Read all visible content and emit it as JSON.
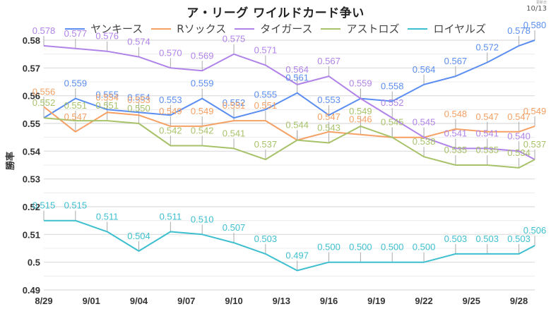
{
  "header": {
    "title": "ア・リーグ ワイルドカード争い",
    "updated_label": "更新日",
    "updated_value": "10/13"
  },
  "chart_data": {
    "type": "line",
    "title": "ア・リーグ ワイルドカード争い",
    "xlabel": "",
    "ylabel": "勝率",
    "ylim": [
      0.49,
      0.58
    ],
    "yticks": [
      0.58,
      0.57,
      0.56,
      0.55,
      0.54,
      0.53,
      0.52,
      0.51,
      0.5,
      0.49
    ],
    "ytick_labels": [
      "0.58",
      "0.57",
      "0.56",
      "0.55",
      "0.54",
      "0.53",
      "0.52",
      "0.51",
      "0.5",
      "0.49"
    ],
    "xtick_labels": [
      "8/29",
      "9/01",
      "9/04",
      "9/07",
      "9/10",
      "9/13",
      "9/16",
      "9/19",
      "9/22",
      "9/25",
      "9/28"
    ],
    "xtick_days": [
      0,
      3,
      6,
      9,
      12,
      15,
      18,
      21,
      24,
      27,
      30
    ],
    "x_days": [
      0,
      2,
      4,
      6,
      8,
      10,
      12,
      14,
      16,
      18,
      20,
      22,
      24,
      26,
      28,
      30,
      31
    ],
    "x": [
      "8/29",
      "8/31",
      "9/02",
      "9/04",
      "9/06",
      "9/08",
      "9/10",
      "9/12",
      "9/14",
      "9/16",
      "9/18",
      "9/20",
      "9/22",
      "9/24",
      "9/26",
      "9/28",
      "9/29"
    ],
    "xlim_days": [
      0,
      31
    ],
    "grid": true,
    "legend_position": "top-center",
    "series": [
      {
        "name": "ヤンキース",
        "color": "#5b8ef0",
        "values": [
          0.552,
          0.559,
          0.555,
          0.554,
          0.553,
          0.559,
          0.552,
          0.555,
          0.561,
          0.553,
          0.559,
          0.558,
          0.564,
          0.567,
          0.572,
          0.578,
          0.58
        ],
        "hidden_labels": [
          0,
          10
        ]
      },
      {
        "name": "Rソックス",
        "color": "#f5a064",
        "values": [
          0.556,
          0.547,
          0.554,
          0.553,
          0.549,
          0.549,
          0.551,
          0.551,
          0.544,
          0.547,
          0.546,
          0.545,
          0.545,
          0.548,
          0.547,
          0.547,
          0.549
        ],
        "hidden_labels": [
          8,
          11,
          12
        ]
      },
      {
        "name": "タイガース",
        "color": "#b083e8",
        "values": [
          0.578,
          0.577,
          0.576,
          0.574,
          0.57,
          0.569,
          0.575,
          0.571,
          0.564,
          0.567,
          0.559,
          0.552,
          0.545,
          0.541,
          0.541,
          0.54,
          0.537
        ],
        "hidden_labels": [
          16
        ]
      },
      {
        "name": "アストロズ",
        "color": "#a8c26a",
        "values": [
          0.552,
          0.551,
          0.551,
          0.55,
          0.542,
          0.542,
          0.541,
          0.537,
          0.544,
          0.543,
          0.549,
          0.545,
          0.538,
          0.535,
          0.535,
          0.534,
          0.537
        ],
        "hidden_labels": []
      },
      {
        "name": "ロイヤルズ",
        "color": "#3dbfcf",
        "values": [
          0.515,
          0.515,
          0.511,
          0.504,
          0.511,
          0.51,
          0.507,
          0.503,
          0.497,
          0.5,
          0.5,
          0.5,
          0.5,
          0.503,
          0.503,
          0.503,
          0.506
        ],
        "hidden_labels": []
      }
    ]
  }
}
